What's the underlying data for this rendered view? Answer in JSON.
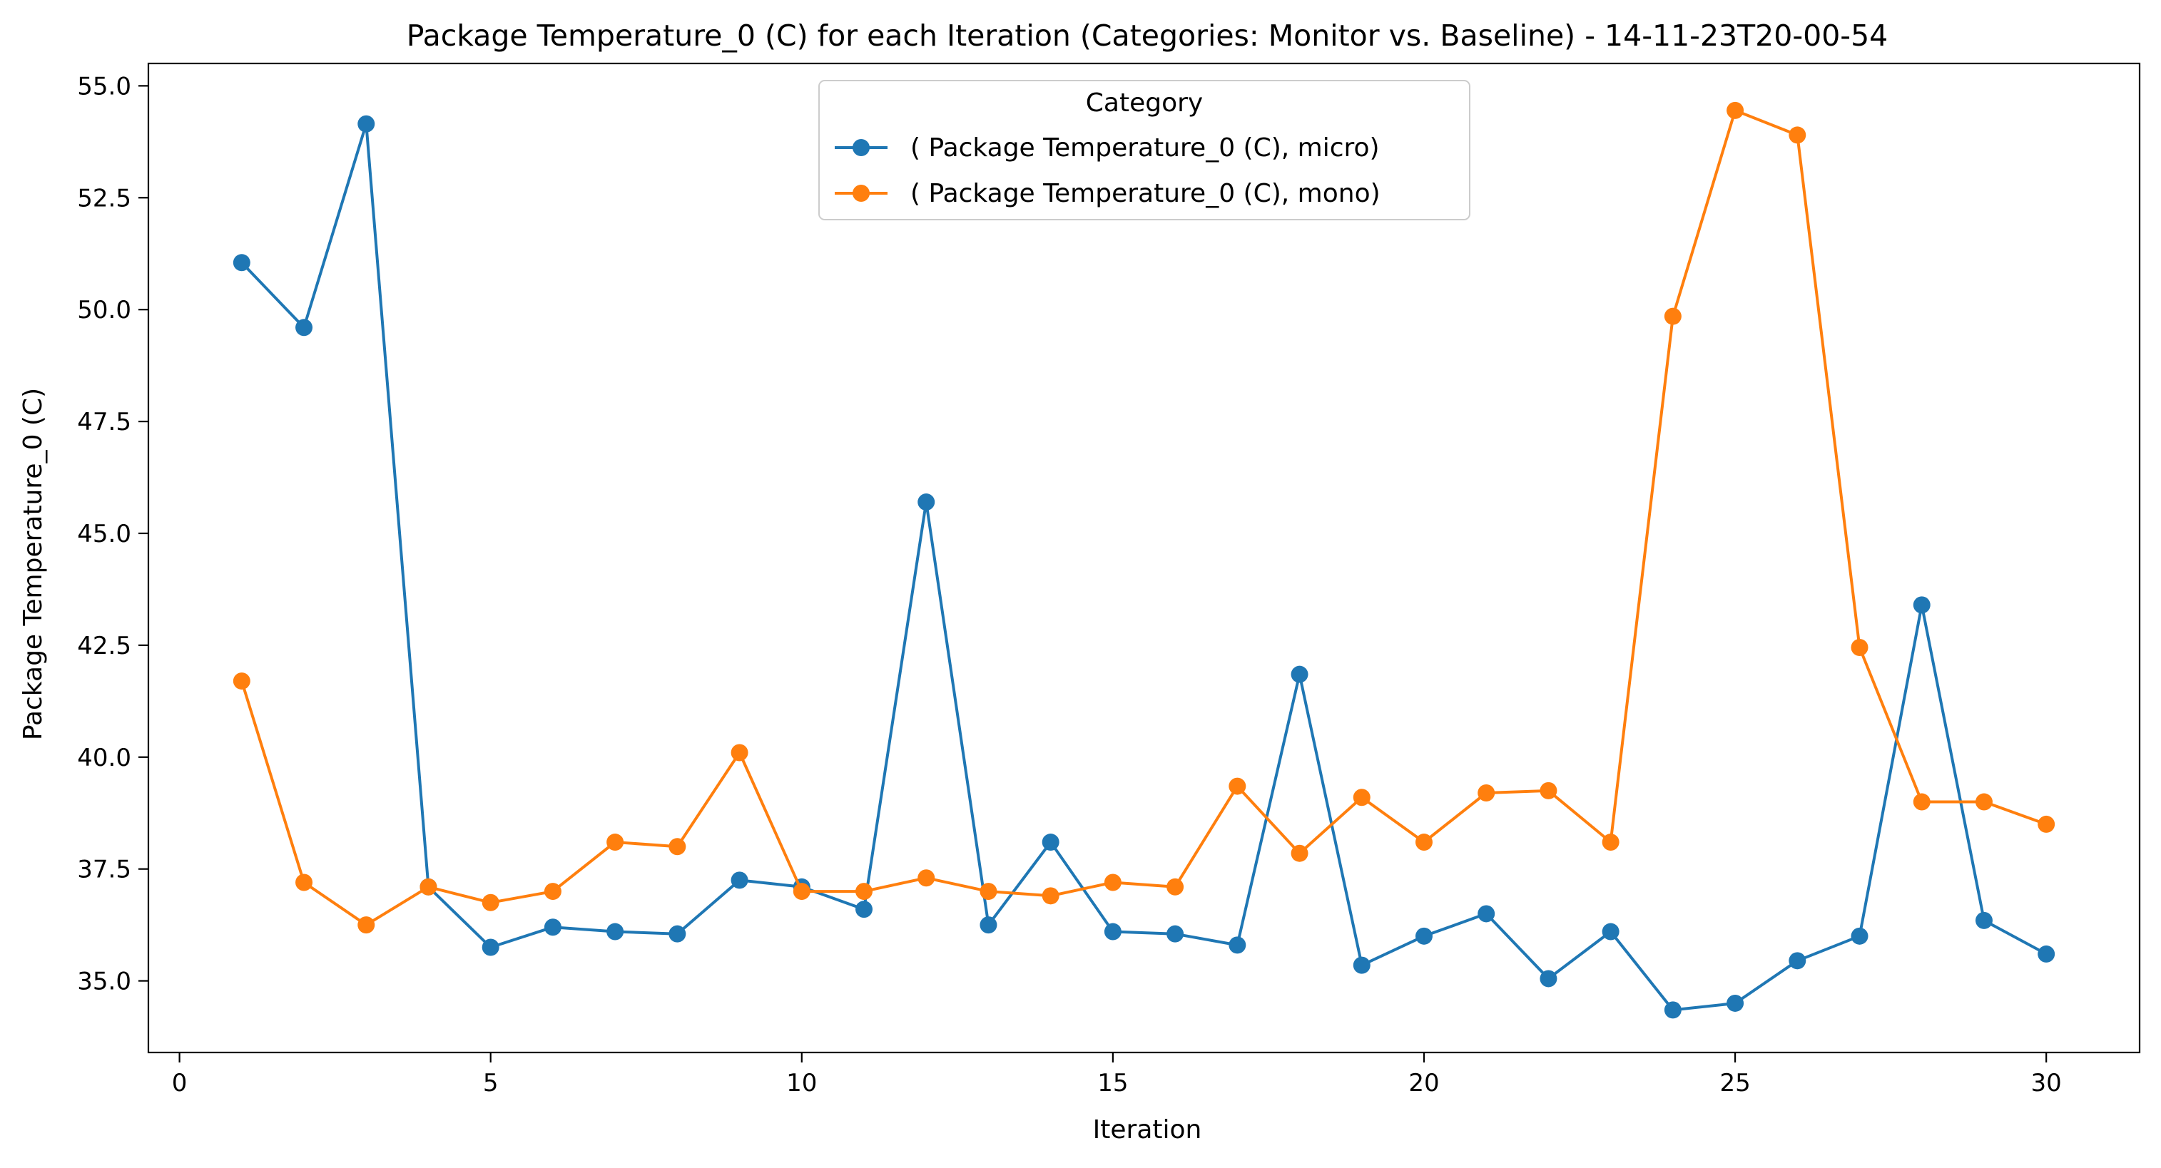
{
  "chart_data": {
    "type": "line",
    "title": "Package Temperature_0 (C) for each Iteration (Categories: Monitor vs. Baseline) - 14-11-23T20-00-54",
    "xlabel": "Iteration",
    "ylabel": "Package Temperature_0 (C)",
    "xlim": [
      -0.5,
      31.5
    ],
    "ylim": [
      33.4,
      55.5
    ],
    "x_ticks": [
      0,
      5,
      10,
      15,
      20,
      25,
      30
    ],
    "y_ticks": [
      35.0,
      37.5,
      40.0,
      42.5,
      45.0,
      47.5,
      50.0,
      52.5,
      55.0
    ],
    "x_tick_labels": [
      "0",
      "5",
      "10",
      "15",
      "20",
      "25",
      "30"
    ],
    "y_tick_labels": [
      "35.0",
      "37.5",
      "40.0",
      "42.5",
      "45.0",
      "47.5",
      "50.0",
      "52.5",
      "55.0"
    ],
    "grid": false,
    "legend": {
      "title": "Category",
      "placement": "top-center"
    },
    "x": [
      1,
      2,
      3,
      4,
      5,
      6,
      7,
      8,
      9,
      10,
      11,
      12,
      13,
      14,
      15,
      16,
      17,
      18,
      19,
      20,
      21,
      22,
      23,
      24,
      25,
      26,
      27,
      28,
      29,
      30
    ],
    "series": [
      {
        "name": "( Package Temperature_0 (C), micro)",
        "color": "#1f77b4",
        "values": [
          51.05,
          49.6,
          54.15,
          37.1,
          35.75,
          36.2,
          36.1,
          36.05,
          37.25,
          37.1,
          36.6,
          45.7,
          36.25,
          38.1,
          36.1,
          36.05,
          35.8,
          41.85,
          35.35,
          36.0,
          36.5,
          35.05,
          36.1,
          34.35,
          34.5,
          35.45,
          36.0,
          43.4,
          36.35,
          35.6
        ]
      },
      {
        "name": "( Package Temperature_0 (C), mono)",
        "color": "#ff7f0e",
        "values": [
          41.7,
          37.2,
          36.25,
          37.1,
          36.75,
          37.0,
          38.1,
          38.0,
          40.1,
          37.0,
          37.0,
          37.3,
          37.0,
          36.9,
          37.2,
          37.1,
          39.35,
          37.85,
          39.1,
          38.1,
          39.2,
          39.25,
          38.1,
          49.85,
          54.45,
          53.9,
          42.45,
          39.0,
          39.0,
          38.5
        ]
      }
    ]
  }
}
